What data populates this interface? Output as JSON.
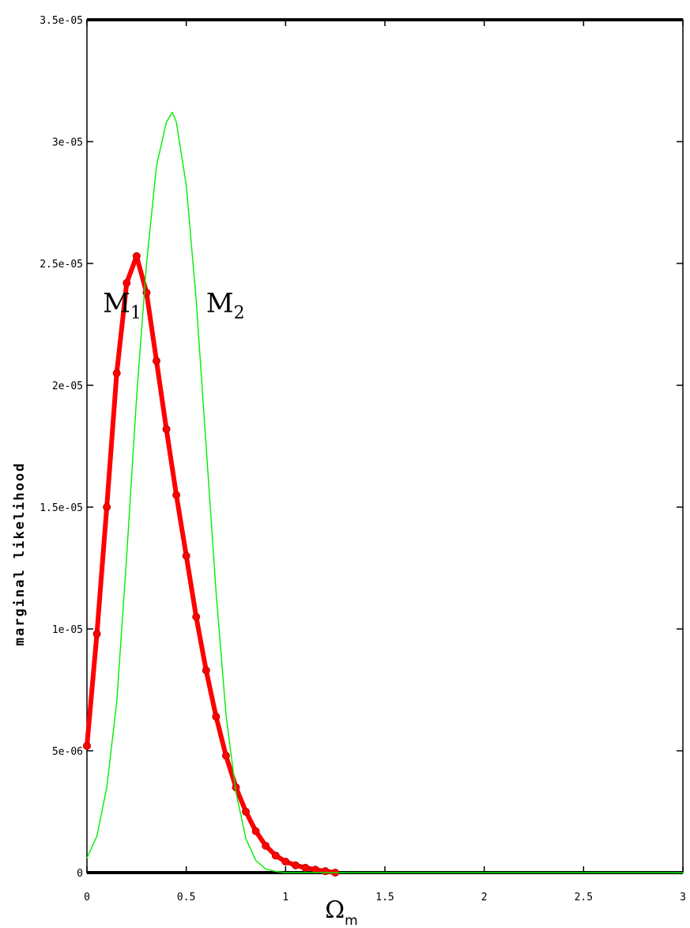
{
  "chart_data": {
    "type": "line",
    "title": "",
    "xlabel": "Ω",
    "xlabel_subscript": "m",
    "ylabel": "marginal likelihood",
    "xlim": [
      0,
      3
    ],
    "ylim": [
      0,
      3.5e-05
    ],
    "grid": false,
    "x_ticks": [
      {
        "value": 0,
        "label": "0"
      },
      {
        "value": 0.5,
        "label": "0.5"
      },
      {
        "value": 1,
        "label": "1"
      },
      {
        "value": 1.5,
        "label": "1.5"
      },
      {
        "value": 2,
        "label": "2"
      },
      {
        "value": 2.5,
        "label": "2.5"
      },
      {
        "value": 3,
        "label": "3"
      }
    ],
    "y_ticks": [
      {
        "value": 0,
        "label": "0"
      },
      {
        "value": 5e-06,
        "label": "5e-06"
      },
      {
        "value": 1e-05,
        "label": "1e-05"
      },
      {
        "value": 1.5e-05,
        "label": "1.5e-05"
      },
      {
        "value": 2e-05,
        "label": "2e-05"
      },
      {
        "value": 2.5e-05,
        "label": "2.5e-05"
      },
      {
        "value": 3e-05,
        "label": "3e-05"
      },
      {
        "value": 3.5e-05,
        "label": "3.5e-05"
      }
    ],
    "series": [
      {
        "name": "M1",
        "label": "M",
        "label_subscript": "1",
        "label_at": [
          0.08,
          2.3e-05
        ],
        "color": "#ff0000",
        "style": "thick-markers",
        "x": [
          0.0,
          0.05,
          0.1,
          0.15,
          0.2,
          0.25,
          0.3,
          0.35,
          0.4,
          0.45,
          0.5,
          0.55,
          0.6,
          0.65,
          0.7,
          0.75,
          0.8,
          0.85,
          0.9,
          0.95,
          1.0,
          1.05,
          1.1,
          1.15,
          1.2,
          1.25
        ],
        "y": [
          5.2e-06,
          9.8e-06,
          1.5e-05,
          2.05e-05,
          2.42e-05,
          2.53e-05,
          2.38e-05,
          2.1e-05,
          1.82e-05,
          1.55e-05,
          1.3e-05,
          1.05e-05,
          8.3e-06,
          6.4e-06,
          4.8e-06,
          3.5e-06,
          2.5e-06,
          1.7e-06,
          1.1e-06,
          7e-07,
          4.5e-07,
          3e-07,
          2e-07,
          1.2e-07,
          6e-08,
          0.0
        ]
      },
      {
        "name": "M2",
        "label": "M",
        "label_subscript": "2",
        "label_at": [
          0.6,
          2.3e-05
        ],
        "color": "#00ee00",
        "style": "thin-line",
        "x": [
          0.0,
          0.05,
          0.1,
          0.15,
          0.2,
          0.25,
          0.3,
          0.35,
          0.4,
          0.43,
          0.45,
          0.5,
          0.55,
          0.6,
          0.65,
          0.7,
          0.75,
          0.8,
          0.85,
          0.9,
          0.95,
          1.0,
          1.5,
          2.0,
          2.5,
          3.0
        ],
        "y": [
          6e-07,
          1.5e-06,
          3.5e-06,
          7e-06,
          1.3e-05,
          1.95e-05,
          2.5e-05,
          2.9e-05,
          3.08e-05,
          3.12e-05,
          3.08e-05,
          2.82e-05,
          2.35e-05,
          1.75e-05,
          1.15e-05,
          6.5e-06,
          3.3e-06,
          1.4e-06,
          5e-07,
          1.5e-07,
          5e-08,
          0.0,
          0.0,
          0.0,
          0.0,
          0.0
        ]
      }
    ]
  }
}
